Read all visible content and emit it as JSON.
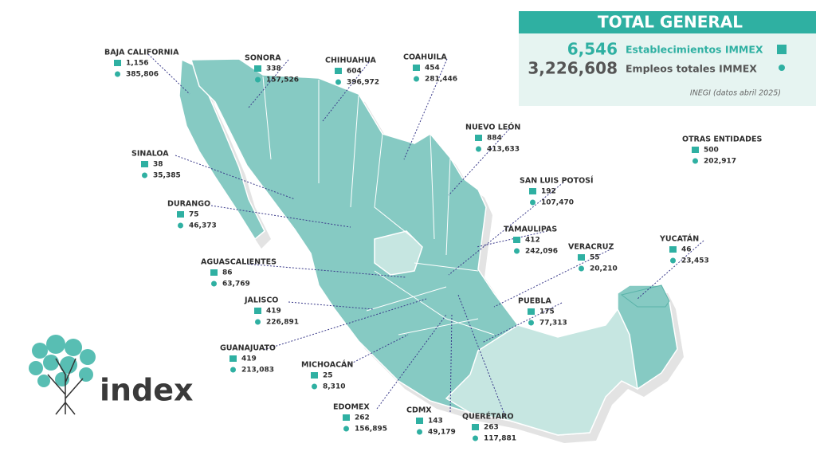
{
  "header": {
    "title": "TOTAL GENERAL",
    "establishments": {
      "value": "6,546",
      "label": "Establecimientos IMMEX"
    },
    "employees": {
      "value": "3,226,608",
      "label": "Empleos totales IMMEX"
    },
    "source": "INEGI (datos abril 2025)"
  },
  "states": [
    {
      "name": "BAJA CALIFORNIA",
      "establishments": "1,156",
      "employees": "385,806"
    },
    {
      "name": "SONORA",
      "establishments": "338",
      "employees": "157,526"
    },
    {
      "name": "CHIHUAHUA",
      "establishments": "604",
      "employees": "396,972"
    },
    {
      "name": "COAHUILA",
      "establishments": "454",
      "employees": "281,446"
    },
    {
      "name": "NUEVO LEÓN",
      "establishments": "884",
      "employees": "413,633"
    },
    {
      "name": "SINALOA",
      "establishments": "38",
      "employees": "35,385"
    },
    {
      "name": "SAN LUIS POTOSÍ",
      "establishments": "192",
      "employees": "107,470"
    },
    {
      "name": "DURANGO",
      "establishments": "75",
      "employees": "46,373"
    },
    {
      "name": "TAMAULIPAS",
      "establishments": "412",
      "employees": "242,096"
    },
    {
      "name": "VERACRUZ",
      "establishments": "55",
      "employees": "20,210"
    },
    {
      "name": "YUCATÁN",
      "establishments": "46",
      "employees": "23,453"
    },
    {
      "name": "OTRAS ENTIDADES",
      "establishments": "500",
      "employees": "202,917"
    },
    {
      "name": "AGUASCALIENTES",
      "establishments": "86",
      "employees": "63,769"
    },
    {
      "name": "JALISCO",
      "establishments": "419",
      "employees": "226,891"
    },
    {
      "name": "PUEBLA",
      "establishments": "175",
      "employees": "77,313"
    },
    {
      "name": "GUANAJUATO",
      "establishments": "419",
      "employees": "213,083"
    },
    {
      "name": "MICHOACÁN",
      "establishments": "25",
      "employees": "8,310"
    },
    {
      "name": "EDOMEX",
      "establishments": "262",
      "employees": "156,895"
    },
    {
      "name": "CDMX",
      "establishments": "143",
      "employees": "49,179"
    },
    {
      "name": "QUERÉTARO",
      "establishments": "263",
      "employees": "117,881"
    }
  ],
  "logo": {
    "text": "index"
  }
}
